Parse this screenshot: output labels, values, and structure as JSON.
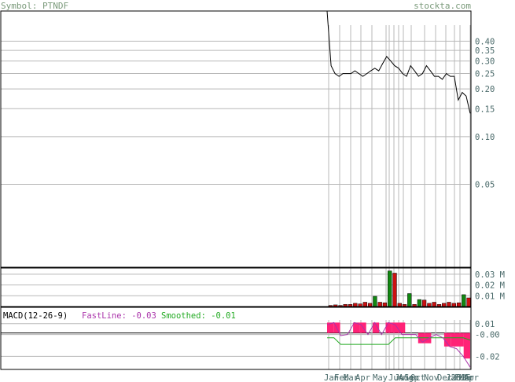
{
  "header": {
    "symbol_label": "Symbol: PTNDF",
    "site_label": "stockta.com"
  },
  "colors": {
    "background": "#ffffff",
    "frame": "#000000",
    "grid": "#b8b8b8",
    "header_text": "#7a9a7a",
    "axis_text": "#4a6a6a",
    "price_line": "#000000",
    "volume_up": "#118811",
    "volume_down": "#cc1111",
    "macd_hist": "#ff2277",
    "macd_signal": "#22aa22",
    "macd_line": "#aa33aa",
    "fastline_label": "#aa33aa",
    "smoothed_label": "#22aa22"
  },
  "chart_data": [
    {
      "type": "line",
      "panel": "price",
      "y_scale": "log",
      "ylim": [
        0.015,
        0.62
      ],
      "y_ticks": [
        0.4,
        0.35,
        0.3,
        0.25,
        0.2,
        0.15,
        0.1,
        0.05
      ],
      "y_tick_labels": [
        "0.40",
        "0.35",
        "0.30",
        "0.25",
        "0.20",
        "0.15",
        "0.10",
        "0.05"
      ],
      "x_labels": [
        "Jan",
        "Feb",
        "Mar",
        "Apr",
        "May",
        "Jun",
        "Jul",
        "Aug",
        "Sep",
        "Oct",
        "Nov",
        "Dec",
        "Jan",
        "Feb",
        "Mar",
        "Apr",
        "2025"
      ],
      "series": [
        {
          "values": [
            0.62,
            0.28,
            0.25,
            0.24,
            0.25,
            0.25,
            0.25,
            0.26,
            0.25,
            0.24,
            0.25,
            0.26,
            0.27,
            0.26,
            0.29,
            0.32,
            0.3,
            0.28,
            0.27,
            0.25,
            0.24,
            0.28,
            0.26,
            0.24,
            0.25,
            0.28,
            0.26,
            0.24,
            0.24,
            0.23,
            0.25,
            0.24,
            0.24,
            0.17,
            0.19,
            0.18,
            0.14
          ]
        }
      ]
    },
    {
      "type": "bar",
      "panel": "volume",
      "y_ticks": [
        0.03,
        0.02,
        0.01
      ],
      "y_tick_labels": [
        "0.03 M",
        "0.02 M",
        "0.01 M"
      ],
      "ylim": [
        0,
        0.0357
      ],
      "values": [
        0.001,
        0.0015,
        0.001,
        0.002,
        0.002,
        0.003,
        0.0025,
        0.004,
        0.003,
        0.0095,
        0.004,
        0.0035,
        0.033,
        0.031,
        0.003,
        0.002,
        0.012,
        0.002,
        0.0065,
        0.006,
        0.003,
        0.004,
        0.002,
        0.003,
        0.004,
        0.003,
        0.0035,
        0.011,
        0.008
      ],
      "colors": [
        "down",
        "down",
        "down",
        "down",
        "down",
        "down",
        "down",
        "down",
        "down",
        "up",
        "down",
        "down",
        "up",
        "down",
        "down",
        "down",
        "up",
        "down",
        "up",
        "down",
        "down",
        "down",
        "down",
        "down",
        "down",
        "down",
        "down",
        "up",
        "down"
      ]
    },
    {
      "type": "bar",
      "panel": "macd",
      "title": "MACD(12-26-9)",
      "fastline_text": "FastLine: -0.03",
      "smoothed_text": "Smoothed: -0.01",
      "y_ticks": [
        0.01,
        0,
        -0.02
      ],
      "y_tick_labels": [
        "0.01",
        "-0.00",
        "-0.02"
      ],
      "ylim": [
        -0.032,
        0.025
      ],
      "histogram": [
        0.011,
        0.011,
        0.0,
        0.0,
        0.011,
        0.011,
        0.0,
        0.011,
        0.0,
        0.011,
        0.011,
        0.011,
        0.0,
        0.0,
        -0.008,
        -0.008,
        0.0,
        0.0,
        -0.011,
        -0.011,
        -0.011,
        -0.022
      ],
      "signal": [
        -0.003,
        -0.003,
        -0.009,
        -0.009,
        -0.009,
        -0.009,
        -0.009,
        -0.009,
        -0.009,
        -0.009,
        -0.003,
        -0.003,
        -0.003,
        -0.003,
        -0.003,
        -0.003,
        -0.003,
        -0.003,
        -0.003,
        -0.003,
        -0.003,
        -0.005
      ],
      "fastline": [
        0.009,
        0.011,
        -0.001,
        0.0,
        0.011,
        0.009,
        0.0,
        0.011,
        0.0,
        0.011,
        0.009,
        0.0,
        0.0,
        0.0,
        -0.007,
        -0.003,
        0.0,
        -0.003,
        -0.011,
        -0.013,
        -0.02,
        -0.03
      ]
    }
  ]
}
